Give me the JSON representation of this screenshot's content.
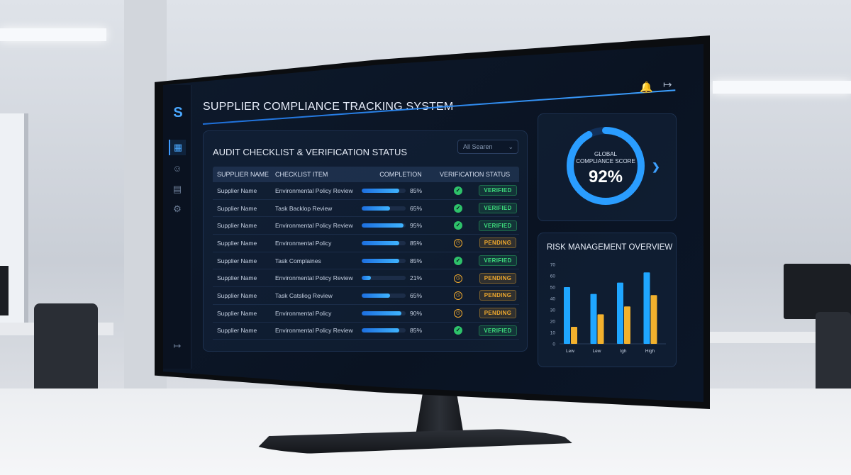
{
  "app": {
    "title": "SUPPLIER COMPLIANCE TRACKING SYSTEM",
    "logo": "S"
  },
  "icons": {
    "notifications": "bell-icon",
    "logout": "logout-icon",
    "sidebar": [
      "dashboard-icon",
      "users-icon",
      "report-icon",
      "settings-icon",
      "logout-icon"
    ]
  },
  "audit": {
    "title": "AUDIT CHECKLIST & VERIFICATION STATUS",
    "search_placeholder": "All Searen",
    "columns": [
      "SUPPLIER NAME",
      "CHECKLIST ITEM",
      "COMPLETION",
      "VERIFICATION",
      "STATUS"
    ],
    "rows": [
      {
        "supplier": "Supplier Name",
        "item": "Environmental Policy Review",
        "completion": 85,
        "completion_label": "85%",
        "verification": "verified",
        "status": "VERIFIED"
      },
      {
        "supplier": "Supplier Name",
        "item": "Task Backlop Review",
        "completion": 65,
        "completion_label": "65%",
        "verification": "verified",
        "status": "VERIFIED"
      },
      {
        "supplier": "Supplier Name",
        "item": "Environmental Policy Review",
        "completion": 95,
        "completion_label": "95%",
        "verification": "verified",
        "status": "VERIFIED"
      },
      {
        "supplier": "Supplier Name",
        "item": "Environmental Policy",
        "completion": 85,
        "completion_label": "85%",
        "verification": "pending",
        "status": "PENDING"
      },
      {
        "supplier": "Supplier Name",
        "item": "Task Complaines",
        "completion": 85,
        "completion_label": "85%",
        "verification": "verified",
        "status": "VERIFIED"
      },
      {
        "supplier": "Supplier Name",
        "item": "Environmental Policy Review",
        "completion": 21,
        "completion_label": "21%",
        "verification": "pending",
        "status": "PENDING"
      },
      {
        "supplier": "Supplier Name",
        "item": "Task Catsliog Review",
        "completion": 65,
        "completion_label": "65%",
        "verification": "pending",
        "status": "PENDING"
      },
      {
        "supplier": "Supplier Name",
        "item": "Environmental Policy",
        "completion": 90,
        "completion_label": "90%",
        "verification": "pending",
        "status": "PENDING"
      },
      {
        "supplier": "Supplier Name",
        "item": "Environmental Policy Review",
        "completion": 85,
        "completion_label": "85%",
        "verification": "verified",
        "status": "VERIFIED"
      }
    ]
  },
  "score": {
    "label_line1": "GLOBAL",
    "label_line2": "COMPLIANCE SCORE",
    "value": "92%",
    "fraction": 0.92
  },
  "risk": {
    "title": "RISK MANAGEMENT OVERVIEW",
    "chart_data": {
      "type": "bar",
      "categories": [
        "Lew",
        "Lew",
        "Igh",
        "High"
      ],
      "series": [
        {
          "values": [
            50,
            44,
            54,
            63
          ],
          "color": "#1fa6ff"
        },
        {
          "values": [
            15,
            26,
            33,
            43
          ],
          "color": "#f2b12d"
        }
      ],
      "y_ticks": [
        "0",
        "10",
        "20",
        "30",
        "40",
        "50",
        "60",
        "70"
      ],
      "ylim": [
        0,
        70
      ]
    }
  },
  "colors": {
    "accent": "#3da0ff",
    "verified": "#2ec26a",
    "pending": "#f0a92e"
  }
}
